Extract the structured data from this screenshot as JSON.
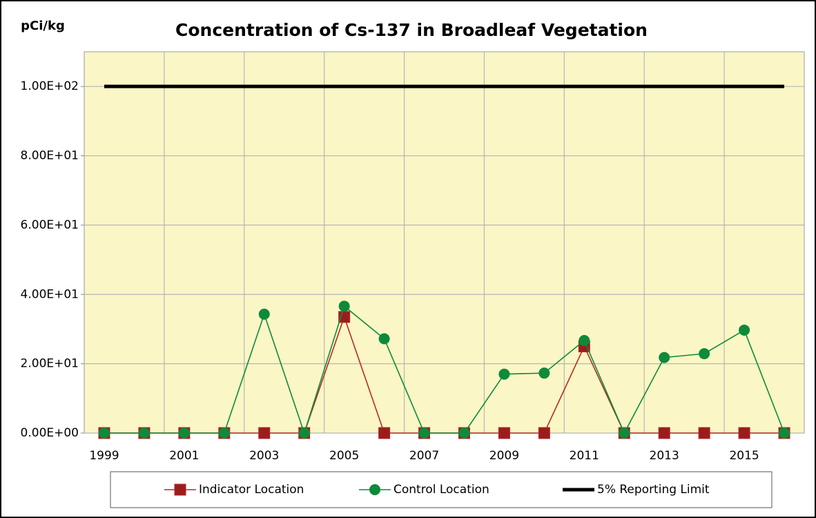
{
  "chart_data": {
    "type": "line",
    "title": "Concentration of Cs-137 in Broadleaf Vegetation",
    "ylabel": "pCi/kg",
    "categories": [
      "1999",
      null,
      "2001",
      null,
      "2003",
      null,
      "2005",
      null,
      "2007",
      null,
      "2009",
      null,
      "2011",
      null,
      "2013",
      null,
      "2015",
      null
    ],
    "series": [
      {
        "name": "Indicator Location",
        "color": "#b22a2a",
        "marker": "square",
        "values": [
          0,
          0,
          0,
          0,
          0,
          0,
          33.5,
          0,
          0,
          0,
          0,
          0,
          25,
          0,
          0,
          0,
          0,
          0
        ]
      },
      {
        "name": "Control Location",
        "color": "#0e8a3a",
        "marker": "circle",
        "values": [
          0,
          0,
          0,
          0,
          34.3,
          0,
          36.6,
          27.2,
          0,
          0,
          17,
          17.3,
          26.7,
          0,
          21.8,
          22.9,
          29.7,
          0
        ]
      },
      {
        "name": "5% Reporting Limit",
        "color": "#000000",
        "marker": "none",
        "values": [
          100,
          100,
          100,
          100,
          100,
          100,
          100,
          100,
          100,
          100,
          100,
          100,
          100,
          100,
          100,
          100,
          100,
          100
        ]
      }
    ],
    "ylim": [
      0,
      110
    ],
    "yticks": [
      {
        "value": 0,
        "label": "0.00E+00"
      },
      {
        "value": 20,
        "label": "2.00E+01"
      },
      {
        "value": 40,
        "label": "4.00E+01"
      },
      {
        "value": 60,
        "label": "6.00E+01"
      },
      {
        "value": 80,
        "label": "8.00E+01"
      },
      {
        "value": 100,
        "label": "1.00E+02"
      }
    ],
    "grid": true
  }
}
